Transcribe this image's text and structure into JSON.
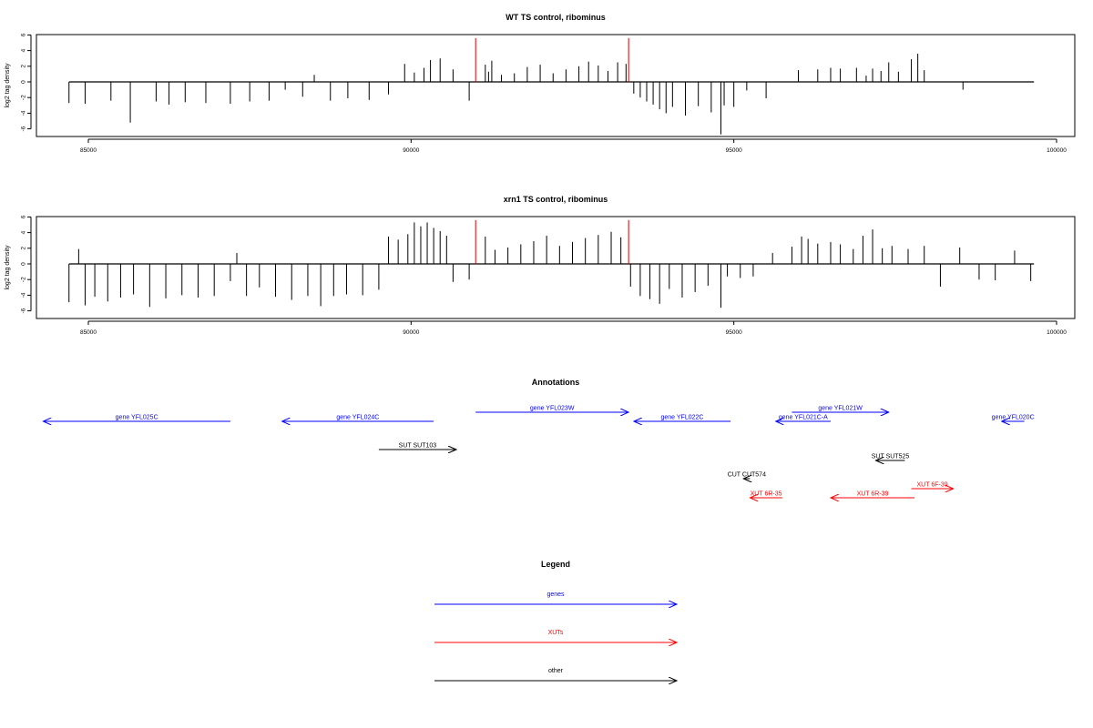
{
  "chart_data": [
    {
      "type": "bar",
      "title": "WT TS control, ribominus",
      "ylabel": "log2 tag density",
      "xlim": [
        84500,
        99700
      ],
      "ylim": [
        -6,
        6
      ],
      "x_ticks": [
        "85000",
        "90000",
        "95000",
        "100000"
      ],
      "y_ticks": [
        "6",
        "4",
        "2",
        "0",
        "-2",
        "-4",
        "-6"
      ],
      "highlight_positions": [
        91000,
        93370
      ],
      "highlight_color": "#dd0000",
      "x": [
        84700,
        84950,
        85350,
        85650,
        86050,
        86250,
        86500,
        86820,
        87200,
        87500,
        87800,
        88050,
        88320,
        88500,
        88750,
        89020,
        89350,
        89650,
        89900,
        90050,
        90200,
        90300,
        90450,
        90650,
        90900,
        91150,
        91200,
        91250,
        91400,
        91600,
        91800,
        92000,
        92200,
        92400,
        92600,
        92750,
        92900,
        93050,
        93200,
        93330,
        93450,
        93550,
        93650,
        93750,
        93850,
        93950,
        94050,
        94250,
        94450,
        94650,
        94800,
        94850,
        95000,
        95200,
        95500,
        96000,
        96300,
        96500,
        96650,
        96900,
        97050,
        97150,
        97280,
        97400,
        97550,
        97750,
        97850,
        97950,
        98550
      ],
      "values": [
        -2.7,
        -2.8,
        -2.4,
        -5.2,
        -2.5,
        -2.9,
        -2.6,
        -2.7,
        -2.8,
        -2.5,
        -2.4,
        -1.0,
        -1.9,
        0.9,
        -2.4,
        -2.1,
        -2.3,
        -1.6,
        2.3,
        1.2,
        1.8,
        2.8,
        3.0,
        1.6,
        -2.4,
        2.2,
        1.3,
        2.7,
        0.9,
        1.1,
        1.9,
        2.2,
        1.1,
        1.6,
        2.0,
        2.6,
        2.1,
        1.4,
        2.5,
        2.3,
        -1.5,
        -2.0,
        -2.5,
        -2.9,
        -3.5,
        -4.0,
        -3.2,
        -4.3,
        -3.1,
        -3.9,
        -6.7,
        -3.0,
        -3.2,
        -1.1,
        -2.1,
        1.5,
        1.6,
        1.8,
        1.7,
        1.8,
        0.8,
        1.7,
        1.4,
        2.5,
        1.3,
        2.9,
        3.6,
        1.5,
        -1.0
      ]
    },
    {
      "type": "bar",
      "title": "xrn1 TS control, ribominus",
      "ylabel": "log2 tag density",
      "xlim": [
        84500,
        99700
      ],
      "ylim": [
        -6,
        6
      ],
      "x_ticks": [
        "85000",
        "90000",
        "95000",
        "100000"
      ],
      "y_ticks": [
        "6",
        "4",
        "2",
        "0",
        "-2",
        "-4",
        "-6"
      ],
      "highlight_positions": [
        91000,
        93370
      ],
      "highlight_color": "#dd0000",
      "x": [
        84700,
        84850,
        84950,
        85100,
        85300,
        85500,
        85700,
        85950,
        86200,
        86450,
        86700,
        86950,
        87200,
        87300,
        87450,
        87650,
        87900,
        88150,
        88400,
        88600,
        88800,
        89000,
        89250,
        89500,
        89650,
        89800,
        89950,
        90050,
        90150,
        90250,
        90350,
        90450,
        90550,
        90650,
        90900,
        91150,
        91300,
        91500,
        91700,
        91900,
        92100,
        92300,
        92500,
        92700,
        92900,
        93100,
        93250,
        93400,
        93550,
        93700,
        93850,
        94000,
        94200,
        94400,
        94600,
        94800,
        94900,
        95100,
        95300,
        95600,
        95900,
        96050,
        96150,
        96300,
        96500,
        96650,
        96850,
        97000,
        97150,
        97300,
        97450,
        97700,
        97950,
        98200,
        98500,
        98800,
        99050,
        99350,
        99600
      ],
      "values": [
        -4.9,
        1.9,
        -5.3,
        -4.2,
        -4.8,
        -4.3,
        -3.9,
        -5.5,
        -4.4,
        -4.0,
        -4.3,
        -4.1,
        -2.2,
        1.4,
        -4.1,
        -3.0,
        -4.2,
        -4.6,
        -4.1,
        -5.4,
        -4.1,
        -3.9,
        -4.0,
        -3.3,
        3.5,
        3.1,
        3.8,
        5.3,
        4.8,
        5.3,
        4.6,
        4.2,
        3.6,
        -2.3,
        -2.0,
        3.5,
        1.8,
        2.1,
        2.5,
        2.9,
        3.6,
        2.3,
        2.8,
        3.3,
        3.7,
        4.1,
        3.4,
        -2.9,
        -4.1,
        -4.5,
        -5.1,
        -3.2,
        -4.3,
        -3.6,
        -2.8,
        -5.6,
        -1.6,
        -1.8,
        -1.6,
        1.4,
        2.2,
        3.5,
        3.2,
        2.6,
        2.8,
        2.5,
        1.9,
        3.6,
        4.4,
        2.0,
        2.3,
        1.9,
        2.3,
        -2.9,
        2.1,
        -2.0,
        -2.1,
        1.7,
        -2.2
      ]
    },
    {
      "type": "annotation_track",
      "title": "Annotations",
      "features": [
        {
          "label": "gene YFL025C",
          "start": 87200,
          "end": 84300,
          "category": "gene"
        },
        {
          "label": "gene YFL024C",
          "start": 90350,
          "end": 88000,
          "category": "gene"
        },
        {
          "label": "gene YFL023W",
          "start": 91000,
          "end": 93370,
          "category": "gene"
        },
        {
          "label": "gene YFL022C",
          "start": 94950,
          "end": 93450,
          "category": "gene"
        },
        {
          "label": "gene YFL021W",
          "start": 95900,
          "end": 97400,
          "category": "gene"
        },
        {
          "label": "gene YFL021C-A",
          "start": 96500,
          "end": 95650,
          "category": "gene"
        },
        {
          "label": "gene YFL020C",
          "start": 99500,
          "end": 99150,
          "category": "gene"
        },
        {
          "label": "SUT SUT103",
          "start": 89500,
          "end": 90700,
          "category": "other"
        },
        {
          "label": "SUT SUT525",
          "start": 97650,
          "end": 97200,
          "category": "other"
        },
        {
          "label": "CUT CUT574",
          "start": 95250,
          "end": 95150,
          "category": "other"
        },
        {
          "label": "XUT 6R-35",
          "start": 95750,
          "end": 95250,
          "category": "XUT"
        },
        {
          "label": "XUT 6R-39",
          "start": 97800,
          "end": 96500,
          "category": "XUT"
        },
        {
          "label": "XUT 6F-39",
          "start": 97750,
          "end": 98400,
          "category": "XUT"
        }
      ]
    },
    {
      "type": "legend",
      "title": "Legend",
      "entries": [
        {
          "label": "genes",
          "color": "#0000ff"
        },
        {
          "label": "XUTs",
          "color": "#ff0000"
        },
        {
          "label": "other",
          "color": "#000000"
        }
      ]
    }
  ]
}
